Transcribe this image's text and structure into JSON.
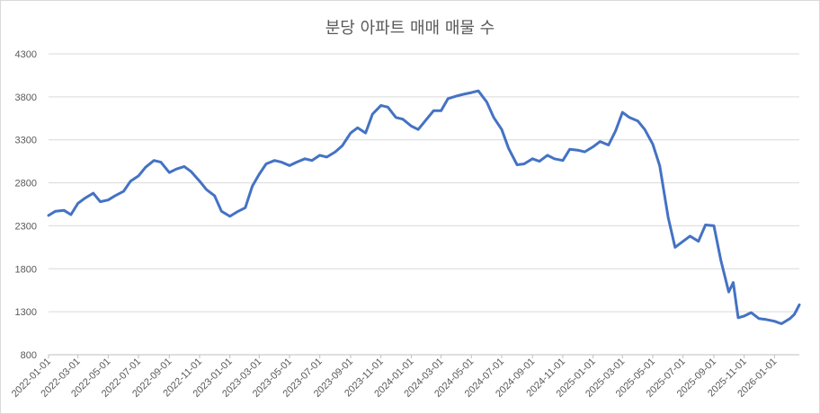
{
  "chart_data": {
    "type": "line",
    "title": "분당 아파트 매매 매물 수",
    "xlabel": "",
    "ylabel": "",
    "ylim": [
      800,
      4300
    ],
    "yticks": [
      800,
      1300,
      1800,
      2300,
      2800,
      3300,
      3800,
      4300
    ],
    "x_range": [
      "2022-01-01",
      "2026-02-20"
    ],
    "xticks": [
      "2022-01-01",
      "2022-03-01",
      "2022-05-01",
      "2022-07-01",
      "2022-09-01",
      "2022-11-01",
      "2023-01-01",
      "2023-03-01",
      "2023-05-01",
      "2023-07-01",
      "2023-09-01",
      "2023-11-01",
      "2024-01-01",
      "2024-03-01",
      "2024-05-01",
      "2024-07-01",
      "2024-09-01",
      "2024-11-01",
      "2025-01-01",
      "2025-03-01",
      "2025-05-01",
      "2025-07-01",
      "2025-09-01",
      "2025-11-01",
      "2026-01-01"
    ],
    "grid": true,
    "legend": "none",
    "line_color": "#4472c4",
    "series": [
      {
        "points": [
          [
            "2022-01-01",
            2420
          ],
          [
            "2022-01-15",
            2470
          ],
          [
            "2022-02-01",
            2480
          ],
          [
            "2022-02-15",
            2430
          ],
          [
            "2022-03-01",
            2560
          ],
          [
            "2022-03-15",
            2620
          ],
          [
            "2022-04-01",
            2680
          ],
          [
            "2022-04-15",
            2580
          ],
          [
            "2022-05-01",
            2600
          ],
          [
            "2022-05-15",
            2650
          ],
          [
            "2022-06-01",
            2700
          ],
          [
            "2022-06-15",
            2820
          ],
          [
            "2022-07-01",
            2880
          ],
          [
            "2022-07-15",
            2980
          ],
          [
            "2022-08-01",
            3060
          ],
          [
            "2022-08-15",
            3040
          ],
          [
            "2022-09-01",
            2920
          ],
          [
            "2022-09-15",
            2960
          ],
          [
            "2022-10-01",
            2990
          ],
          [
            "2022-10-15",
            2930
          ],
          [
            "2022-11-01",
            2820
          ],
          [
            "2022-11-15",
            2720
          ],
          [
            "2022-12-01",
            2650
          ],
          [
            "2022-12-15",
            2470
          ],
          [
            "2023-01-01",
            2410
          ],
          [
            "2023-01-15",
            2460
          ],
          [
            "2023-02-01",
            2510
          ],
          [
            "2023-02-15",
            2760
          ],
          [
            "2023-03-01",
            2900
          ],
          [
            "2023-03-15",
            3020
          ],
          [
            "2023-04-01",
            3060
          ],
          [
            "2023-04-15",
            3040
          ],
          [
            "2023-05-01",
            3000
          ],
          [
            "2023-05-15",
            3040
          ],
          [
            "2023-06-01",
            3080
          ],
          [
            "2023-06-15",
            3060
          ],
          [
            "2023-07-01",
            3120
          ],
          [
            "2023-07-15",
            3100
          ],
          [
            "2023-08-01",
            3160
          ],
          [
            "2023-08-15",
            3230
          ],
          [
            "2023-09-01",
            3380
          ],
          [
            "2023-09-15",
            3440
          ],
          [
            "2023-10-01",
            3380
          ],
          [
            "2023-10-15",
            3600
          ],
          [
            "2023-11-01",
            3700
          ],
          [
            "2023-11-15",
            3680
          ],
          [
            "2023-12-01",
            3560
          ],
          [
            "2023-12-15",
            3540
          ],
          [
            "2024-01-01",
            3460
          ],
          [
            "2024-01-15",
            3420
          ],
          [
            "2024-02-01",
            3540
          ],
          [
            "2024-02-15",
            3640
          ],
          [
            "2024-03-01",
            3640
          ],
          [
            "2024-03-15",
            3780
          ],
          [
            "2024-04-01",
            3810
          ],
          [
            "2024-04-15",
            3830
          ],
          [
            "2024-05-01",
            3850
          ],
          [
            "2024-05-15",
            3870
          ],
          [
            "2024-06-01",
            3740
          ],
          [
            "2024-06-15",
            3560
          ],
          [
            "2024-07-01",
            3420
          ],
          [
            "2024-07-15",
            3200
          ],
          [
            "2024-08-01",
            3010
          ],
          [
            "2024-08-15",
            3020
          ],
          [
            "2024-09-01",
            3080
          ],
          [
            "2024-09-15",
            3050
          ],
          [
            "2024-10-01",
            3120
          ],
          [
            "2024-10-15",
            3080
          ],
          [
            "2024-11-01",
            3060
          ],
          [
            "2024-11-15",
            3190
          ],
          [
            "2024-12-01",
            3180
          ],
          [
            "2024-12-15",
            3160
          ],
          [
            "2025-01-01",
            3220
          ],
          [
            "2025-01-15",
            3280
          ],
          [
            "2025-02-01",
            3240
          ],
          [
            "2025-02-15",
            3400
          ],
          [
            "2025-03-01",
            3620
          ],
          [
            "2025-03-15",
            3560
          ],
          [
            "2025-04-01",
            3520
          ],
          [
            "2025-04-15",
            3420
          ],
          [
            "2025-05-01",
            3250
          ],
          [
            "2025-05-15",
            3000
          ],
          [
            "2025-06-01",
            2400
          ],
          [
            "2025-06-15",
            2050
          ],
          [
            "2025-07-01",
            2120
          ],
          [
            "2025-07-15",
            2180
          ],
          [
            "2025-08-01",
            2120
          ],
          [
            "2025-08-15",
            2310
          ],
          [
            "2025-09-01",
            2300
          ],
          [
            "2025-09-15",
            1900
          ],
          [
            "2025-10-01",
            1530
          ],
          [
            "2025-10-10",
            1640
          ],
          [
            "2025-10-20",
            1230
          ],
          [
            "2025-11-01",
            1250
          ],
          [
            "2025-11-15",
            1290
          ],
          [
            "2025-12-01",
            1220
          ],
          [
            "2025-12-15",
            1210
          ],
          [
            "2026-01-01",
            1190
          ],
          [
            "2026-01-15",
            1160
          ],
          [
            "2026-02-01",
            1220
          ],
          [
            "2026-02-10",
            1270
          ],
          [
            "2026-02-20",
            1380
          ]
        ]
      }
    ]
  }
}
